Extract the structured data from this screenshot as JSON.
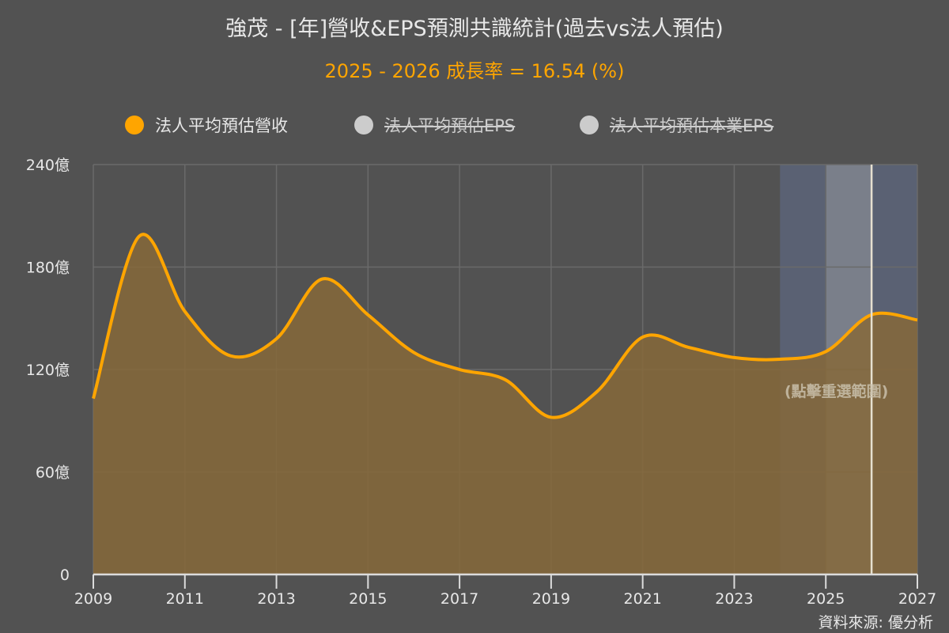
{
  "header": {
    "title": "強茂 - [年]營收&EPS預測共識統計(過去vs法人預估)",
    "subtitle": "2025 - 2026 成長率 = 16.54 (%)"
  },
  "legend": [
    {
      "label": "法人平均預估營收",
      "color": "#ffa500",
      "visible": true
    },
    {
      "label": "法人平均預估EPS",
      "color": "#cccccc",
      "visible": false
    },
    {
      "label": "法人平均預估本業EPS",
      "color": "#cccccc",
      "visible": false
    }
  ],
  "reselect_label": "(點擊重選範圍)",
  "source_label": "資料來源: 優分析",
  "colors": {
    "background": "#525252",
    "line": "#ffa500",
    "area": "#86693a",
    "grid": "#6a6a6a",
    "forecast_band": "#5a6173",
    "selected_band": "#7a7f8a",
    "cursor_line": "#e6e0d0"
  },
  "chart_data": {
    "type": "area",
    "title": "強茂 - [年]營收&EPS預測共識統計(過去vs法人預估)",
    "subtitle": "2025 - 2026 成長率 = 16.54 (%)",
    "xlabel": "",
    "ylabel": "",
    "x": [
      2009,
      2010,
      2011,
      2012,
      2013,
      2014,
      2015,
      2016,
      2017,
      2018,
      2019,
      2020,
      2021,
      2022,
      2023,
      2024,
      2025,
      2026,
      2027
    ],
    "series": [
      {
        "name": "法人平均預估營收",
        "unit": "億",
        "values": [
          103,
          198,
          154,
          128,
          138,
          173,
          152,
          130,
          120,
          114,
          92,
          107,
          139,
          133,
          127,
          126,
          130.5,
          152.1,
          149
        ]
      },
      {
        "name": "法人平均預估EPS",
        "values": [],
        "hidden": true
      },
      {
        "name": "法人平均預估本業EPS",
        "values": [],
        "hidden": true
      }
    ],
    "xticks": [
      "2009",
      "2011",
      "2013",
      "2015",
      "2017",
      "2019",
      "2021",
      "2023",
      "2025",
      "2027"
    ],
    "yticks": [
      "0",
      "60億",
      "120億",
      "180億",
      "240億"
    ],
    "ylim": [
      0,
      240
    ],
    "xlim": [
      2009,
      2027
    ],
    "grid": true,
    "legend_position": "top",
    "forecast_band": [
      2024,
      2027
    ],
    "selected_band": [
      2025,
      2026
    ],
    "cursor_x": 2026
  }
}
